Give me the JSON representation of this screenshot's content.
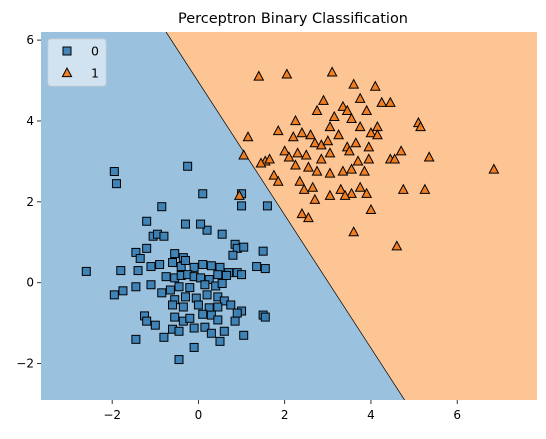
{
  "chart_data": {
    "type": "scatter",
    "title": "Perceptron Binary Classification",
    "xlabel": "",
    "ylabel": "",
    "xlim": [
      -3.65,
      7.85
    ],
    "ylim": [
      -2.9,
      6.2
    ],
    "x_ticks": [
      -2,
      0,
      2,
      4,
      6
    ],
    "y_ticks": [
      -2,
      0,
      2,
      4,
      6
    ],
    "grid": false,
    "legend_placement": "top-left",
    "decision_boundary": {
      "points": [
        [
          -0.75,
          6.2
        ],
        [
          4.78,
          -2.9
        ]
      ]
    },
    "region_colors": {
      "0": "#9ac1de",
      "1": "#fdc593"
    },
    "series": [
      {
        "name": "0",
        "marker": "square",
        "color": "#3b80b4",
        "points": [
          [
            -1.95,
            2.75
          ],
          [
            -1.9,
            2.45
          ],
          [
            -0.85,
            1.88
          ],
          [
            -0.25,
            2.88
          ],
          [
            0.1,
            2.2
          ],
          [
            1.0,
            2.2
          ],
          [
            1.0,
            1.9
          ],
          [
            1.6,
            1.9
          ],
          [
            -1.2,
            1.52
          ],
          [
            -1.05,
            1.15
          ],
          [
            -0.95,
            1.2
          ],
          [
            -0.8,
            1.15
          ],
          [
            0.55,
            1.2
          ],
          [
            0.2,
            1.3
          ],
          [
            -0.3,
            1.45
          ],
          [
            0.05,
            1.45
          ],
          [
            -1.45,
            0.75
          ],
          [
            -1.35,
            0.6
          ],
          [
            -1.2,
            0.85
          ],
          [
            -0.55,
            0.72
          ],
          [
            -0.35,
            0.62
          ],
          [
            0.85,
            0.95
          ],
          [
            0.9,
            0.85
          ],
          [
            1.05,
            0.88
          ],
          [
            0.8,
            0.68
          ],
          [
            1.5,
            0.78
          ],
          [
            -2.6,
            0.28
          ],
          [
            -1.8,
            0.3
          ],
          [
            -1.4,
            0.3
          ],
          [
            -1.1,
            0.4
          ],
          [
            -0.9,
            0.45
          ],
          [
            -0.6,
            0.5
          ],
          [
            -0.4,
            0.4
          ],
          [
            -0.3,
            0.55
          ],
          [
            -0.1,
            0.38
          ],
          [
            0.1,
            0.45
          ],
          [
            0.3,
            0.42
          ],
          [
            0.5,
            0.38
          ],
          [
            0.7,
            0.25
          ],
          [
            0.9,
            0.25
          ],
          [
            1.35,
            0.4
          ],
          [
            1.55,
            0.35
          ],
          [
            -0.75,
            0.15
          ],
          [
            -0.55,
            0.12
          ],
          [
            -0.4,
            0.18
          ],
          [
            -0.25,
            0.2
          ],
          [
            -0.1,
            0.15
          ],
          [
            0.05,
            0.12
          ],
          [
            0.25,
            0.08
          ],
          [
            0.45,
            0.2
          ],
          [
            0.65,
            0.18
          ],
          [
            1.0,
            0.2
          ],
          [
            -1.95,
            -0.3
          ],
          [
            -1.75,
            -0.2
          ],
          [
            -1.45,
            -0.1
          ],
          [
            -1.1,
            -0.05
          ],
          [
            -0.65,
            -0.18
          ],
          [
            -0.45,
            -0.1
          ],
          [
            -0.2,
            -0.12
          ],
          [
            0.15,
            -0.05
          ],
          [
            0.4,
            -0.08
          ],
          [
            0.55,
            -0.02
          ],
          [
            -0.85,
            -0.25
          ],
          [
            -0.55,
            -0.42
          ],
          [
            -0.3,
            -0.35
          ],
          [
            -0.05,
            -0.38
          ],
          [
            0.2,
            -0.3
          ],
          [
            0.45,
            -0.35
          ],
          [
            0.6,
            -0.45
          ],
          [
            -0.6,
            -0.55
          ],
          [
            -0.35,
            -0.6
          ],
          [
            0.0,
            -0.55
          ],
          [
            0.25,
            -0.62
          ],
          [
            0.45,
            -0.6
          ],
          [
            0.75,
            -0.55
          ],
          [
            1.0,
            -0.7
          ],
          [
            -1.25,
            -0.82
          ],
          [
            -1.2,
            -0.95
          ],
          [
            -0.55,
            -0.85
          ],
          [
            -0.35,
            -0.95
          ],
          [
            -0.2,
            -0.88
          ],
          [
            0.1,
            -0.78
          ],
          [
            0.3,
            -0.8
          ],
          [
            0.45,
            -0.92
          ],
          [
            0.9,
            -0.75
          ],
          [
            1.5,
            -0.8
          ],
          [
            1.55,
            -0.85
          ],
          [
            -1.0,
            -1.05
          ],
          [
            -0.6,
            -1.15
          ],
          [
            -0.45,
            -1.2
          ],
          [
            -0.1,
            -1.12
          ],
          [
            0.15,
            -1.1
          ],
          [
            0.3,
            -1.25
          ],
          [
            0.6,
            -1.2
          ],
          [
            0.85,
            -0.95
          ],
          [
            -1.45,
            -1.4
          ],
          [
            -0.8,
            -1.35
          ],
          [
            0.5,
            -1.45
          ],
          [
            1.05,
            -1.3
          ],
          [
            -0.1,
            -1.6
          ],
          [
            -0.45,
            -1.9
          ]
        ]
      },
      {
        "name": "1",
        "marker": "triangle",
        "color": "#ef7b1e",
        "points": [
          [
            1.4,
            5.1
          ],
          [
            2.05,
            5.15
          ],
          [
            3.1,
            5.2
          ],
          [
            3.6,
            4.9
          ],
          [
            3.75,
            4.55
          ],
          [
            4.1,
            4.85
          ],
          [
            2.9,
            4.5
          ],
          [
            3.35,
            4.35
          ],
          [
            3.45,
            4.25
          ],
          [
            4.25,
            4.45
          ],
          [
            4.45,
            4.45
          ],
          [
            5.1,
            3.95
          ],
          [
            5.15,
            3.85
          ],
          [
            2.25,
            4.0
          ],
          [
            2.75,
            4.25
          ],
          [
            3.05,
            3.85
          ],
          [
            3.15,
            4.1
          ],
          [
            3.55,
            4.05
          ],
          [
            3.75,
            3.85
          ],
          [
            3.9,
            4.25
          ],
          [
            4.0,
            3.7
          ],
          [
            4.15,
            3.85
          ],
          [
            1.15,
            3.6
          ],
          [
            1.85,
            3.75
          ],
          [
            2.2,
            3.6
          ],
          [
            2.4,
            3.7
          ],
          [
            2.6,
            3.65
          ],
          [
            2.7,
            3.45
          ],
          [
            2.85,
            3.4
          ],
          [
            3.0,
            3.5
          ],
          [
            3.25,
            3.65
          ],
          [
            3.45,
            3.35
          ],
          [
            3.65,
            3.45
          ],
          [
            3.95,
            3.35
          ],
          [
            4.15,
            3.65
          ],
          [
            1.05,
            3.15
          ],
          [
            1.55,
            3.0
          ],
          [
            1.65,
            3.05
          ],
          [
            2.0,
            3.25
          ],
          [
            2.1,
            3.1
          ],
          [
            2.3,
            3.2
          ],
          [
            2.5,
            3.15
          ],
          [
            2.85,
            3.05
          ],
          [
            3.05,
            3.2
          ],
          [
            3.5,
            3.25
          ],
          [
            3.7,
            3.0
          ],
          [
            3.95,
            3.05
          ],
          [
            4.45,
            3.05
          ],
          [
            4.55,
            3.05
          ],
          [
            4.7,
            3.25
          ],
          [
            5.35,
            3.1
          ],
          [
            1.45,
            2.95
          ],
          [
            1.75,
            2.65
          ],
          [
            1.85,
            2.5
          ],
          [
            2.25,
            2.9
          ],
          [
            2.55,
            2.85
          ],
          [
            2.75,
            2.75
          ],
          [
            3.05,
            2.7
          ],
          [
            3.35,
            2.75
          ],
          [
            3.55,
            2.8
          ],
          [
            3.85,
            2.75
          ],
          [
            6.85,
            2.8
          ],
          [
            2.35,
            2.5
          ],
          [
            2.45,
            2.3
          ],
          [
            2.65,
            2.35
          ],
          [
            3.05,
            2.15
          ],
          [
            3.3,
            2.3
          ],
          [
            3.55,
            2.2
          ],
          [
            3.75,
            2.35
          ],
          [
            0.95,
            2.15
          ],
          [
            2.7,
            2.05
          ],
          [
            3.4,
            2.15
          ],
          [
            3.9,
            2.2
          ],
          [
            4.75,
            2.3
          ],
          [
            5.25,
            2.3
          ],
          [
            2.4,
            1.7
          ],
          [
            2.55,
            1.6
          ],
          [
            4.0,
            1.8
          ],
          [
            3.6,
            1.25
          ],
          [
            4.6,
            0.9
          ]
        ]
      }
    ]
  }
}
